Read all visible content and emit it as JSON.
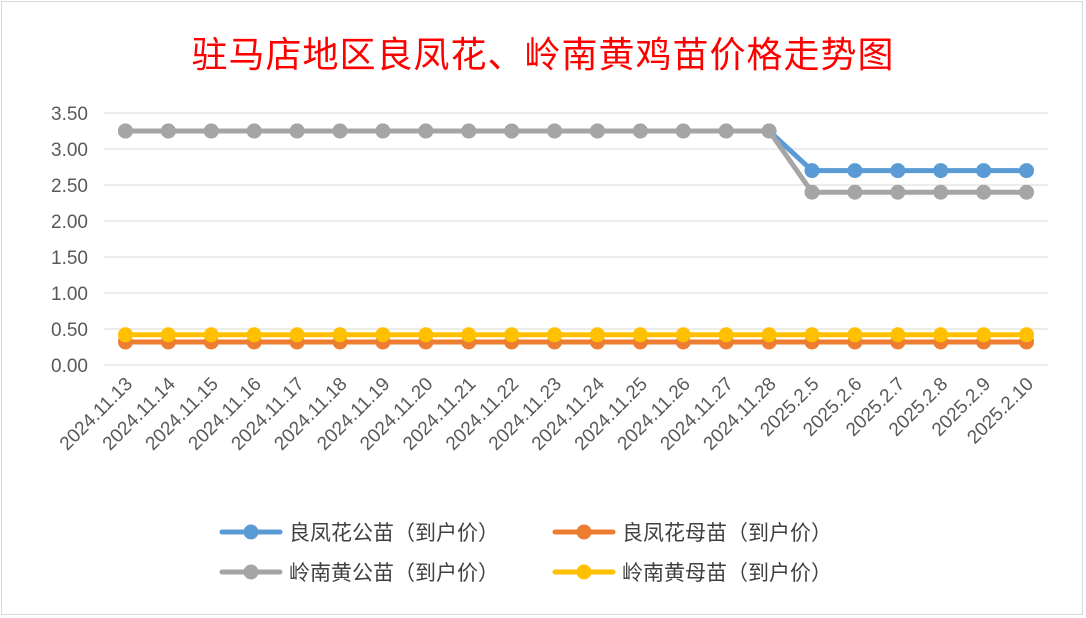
{
  "chart_data": {
    "type": "line",
    "title": "驻马店地区良凤花、岭南黄鸡苗价格走势图",
    "categories": [
      "2024.11.13",
      "2024.11.14",
      "2024.11.15",
      "2024.11.16",
      "2024.11.17",
      "2024.11.18",
      "2024.11.19",
      "2024.11.20",
      "2024.11.21",
      "2024.11.22",
      "2024.11.23",
      "2024.11.24",
      "2024.11.25",
      "2024.11.26",
      "2024.11.27",
      "2024.11.28",
      "2025.2.5",
      "2025.2.6",
      "2025.2.7",
      "2025.2.8",
      "2025.2.9",
      "2025.2.10"
    ],
    "ylim": [
      0,
      3.5
    ],
    "yticks": [
      "0.00",
      "0.50",
      "1.00",
      "1.50",
      "2.00",
      "2.50",
      "3.00",
      "3.50"
    ],
    "grid": true,
    "legend_position": "bottom",
    "series": [
      {
        "name": "良凤花公苗（到户价）",
        "color": "#5b9bd5",
        "values": [
          3.25,
          3.25,
          3.25,
          3.25,
          3.25,
          3.25,
          3.25,
          3.25,
          3.25,
          3.25,
          3.25,
          3.25,
          3.25,
          3.25,
          3.25,
          3.25,
          2.7,
          2.7,
          2.7,
          2.7,
          2.7,
          2.7
        ]
      },
      {
        "name": "良凤花母苗（到户价）",
        "color": "#ed7d31",
        "values": [
          0.32,
          0.32,
          0.32,
          0.32,
          0.32,
          0.32,
          0.32,
          0.32,
          0.32,
          0.32,
          0.32,
          0.32,
          0.32,
          0.32,
          0.32,
          0.32,
          0.32,
          0.32,
          0.32,
          0.32,
          0.32,
          0.32
        ]
      },
      {
        "name": "岭南黄公苗（到户价）",
        "color": "#a5a5a5",
        "values": [
          3.25,
          3.25,
          3.25,
          3.25,
          3.25,
          3.25,
          3.25,
          3.25,
          3.25,
          3.25,
          3.25,
          3.25,
          3.25,
          3.25,
          3.25,
          3.25,
          2.4,
          2.4,
          2.4,
          2.4,
          2.4,
          2.4
        ]
      },
      {
        "name": "岭南黄母苗（到户价）",
        "color": "#ffc000",
        "values": [
          0.42,
          0.42,
          0.42,
          0.42,
          0.42,
          0.42,
          0.42,
          0.42,
          0.42,
          0.42,
          0.42,
          0.42,
          0.42,
          0.42,
          0.42,
          0.42,
          0.42,
          0.42,
          0.42,
          0.42,
          0.42,
          0.42
        ]
      }
    ]
  }
}
